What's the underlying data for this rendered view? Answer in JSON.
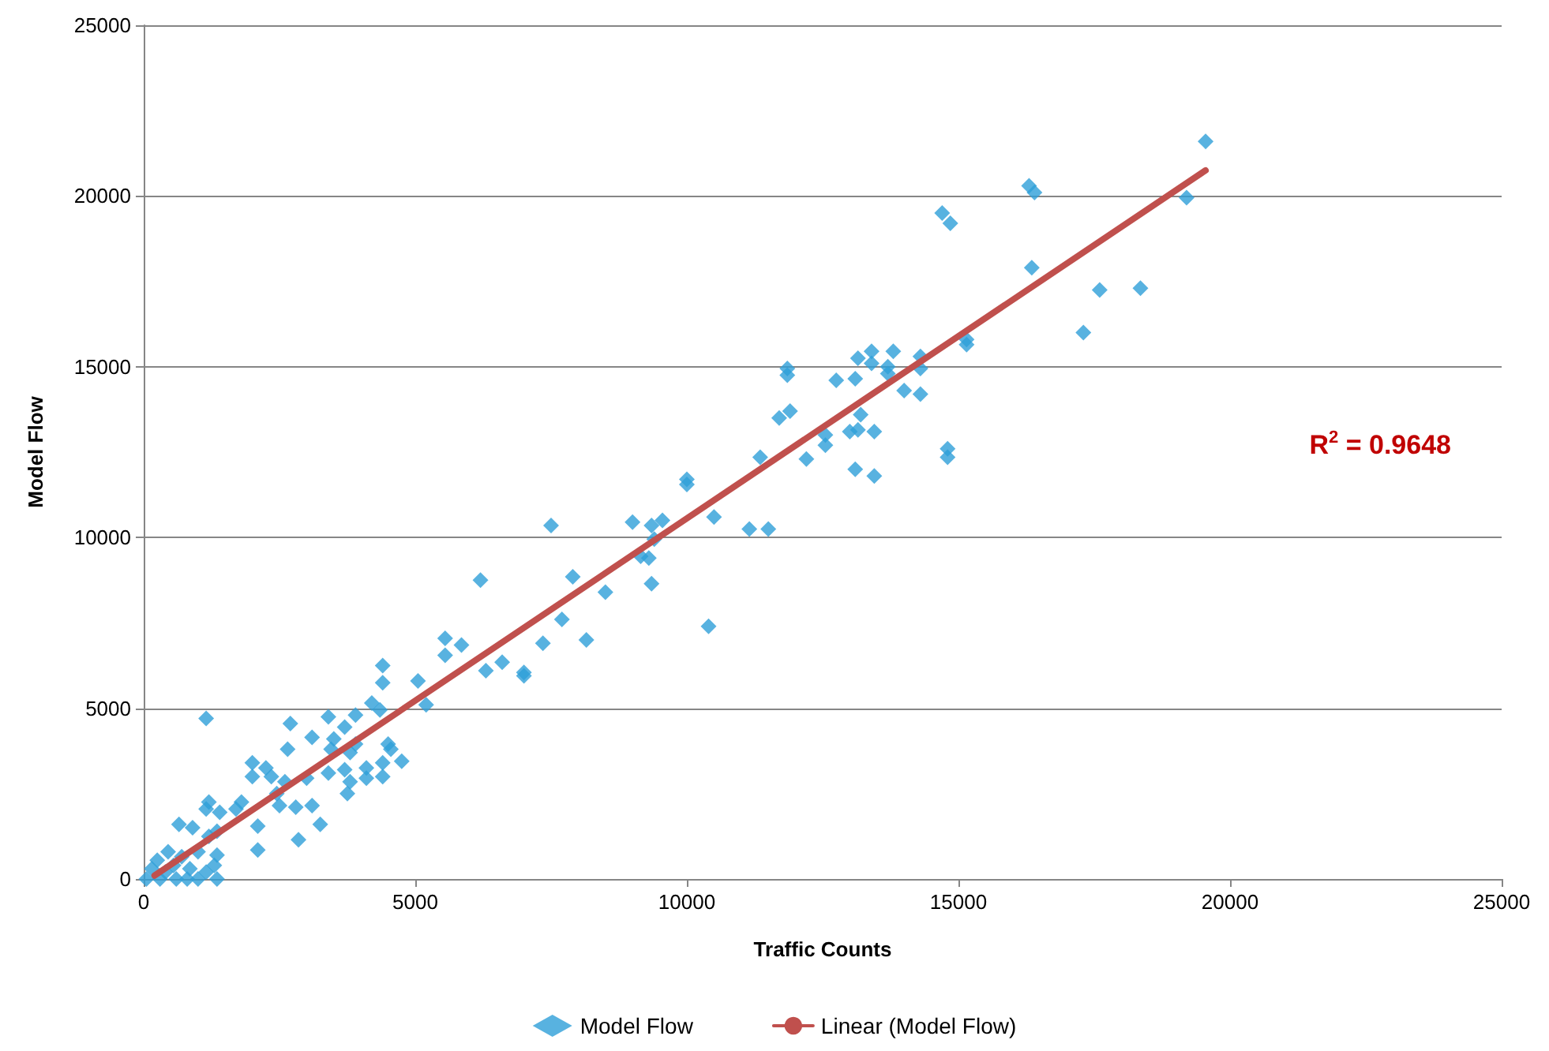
{
  "chart_data": {
    "type": "scatter",
    "xlabel": "Traffic Counts",
    "ylabel": "Model Flow",
    "xlim": [
      0,
      25000
    ],
    "ylim": [
      0,
      25000
    ],
    "xticks": [
      0,
      5000,
      10000,
      15000,
      20000,
      25000
    ],
    "yticks": [
      0,
      5000,
      10000,
      15000,
      20000,
      25000
    ],
    "grid": "y",
    "legend": "bottom",
    "annotations": [
      "R$^{2}$ = 0.9648"
    ],
    "series": [
      {
        "name": "Model Flow",
        "marker": "diamond",
        "color": "#2e9fd8",
        "x": [
          19550,
          19200,
          16300,
          16400,
          14700,
          14850,
          16350,
          17600,
          18350,
          17300,
          15150,
          15150,
          14300,
          14300,
          14300,
          14800,
          14800,
          13800,
          13700,
          13700,
          14000,
          13400,
          13400,
          13150,
          13100,
          12750,
          11850,
          11850,
          11900,
          11700,
          13200,
          13150,
          13000,
          13450,
          12550,
          12550,
          12200,
          11350,
          13100,
          13450,
          10000,
          10000,
          10500,
          11150,
          11500,
          9550,
          9350,
          9000,
          9400,
          9150,
          9300,
          9350,
          7500,
          7900,
          8500,
          7700,
          8150,
          7350,
          10400,
          6200,
          6600,
          7000,
          7000,
          6300,
          5850,
          5550,
          5550,
          4400,
          4400,
          5050,
          5200,
          4200,
          4350,
          1150,
          2700,
          3400,
          3900,
          3700,
          3100,
          3500,
          2650,
          3450,
          3800,
          3900,
          4500,
          4550,
          4750,
          4400,
          4100,
          3700,
          3400,
          4100,
          4400,
          3800,
          3750,
          2000,
          2250,
          2000,
          2350,
          2600,
          3000,
          3100,
          2800,
          2500,
          2450,
          3250,
          2850,
          2100,
          2100,
          1700,
          1800,
          1200,
          1150,
          650,
          900,
          1400,
          1350,
          1200,
          1350,
          1000,
          700,
          450,
          250,
          150,
          400,
          600,
          800,
          1000,
          1350,
          1150,
          50,
          300,
          850,
          1300,
          550
        ],
        "values": [
          21600,
          19950,
          20300,
          20100,
          19500,
          19200,
          17900,
          17250,
          17300,
          16000,
          15800,
          15650,
          15300,
          14950,
          14200,
          12600,
          12350,
          15450,
          15000,
          14800,
          14300,
          15450,
          15100,
          15250,
          14650,
          14600,
          14950,
          14750,
          13700,
          13500,
          13600,
          13150,
          13100,
          13100,
          13000,
          12700,
          12300,
          12350,
          12000,
          11800,
          11700,
          11550,
          10600,
          10250,
          10250,
          10500,
          10350,
          10450,
          9950,
          9450,
          9400,
          8650,
          10350,
          8850,
          8400,
          7600,
          7000,
          6900,
          7400,
          8750,
          6350,
          5950,
          6050,
          6100,
          6850,
          7050,
          6550,
          6250,
          5750,
          5800,
          5100,
          5150,
          4950,
          4700,
          4550,
          4750,
          4800,
          4450,
          4150,
          4100,
          3800,
          3800,
          3700,
          3950,
          3950,
          3800,
          3450,
          3400,
          3250,
          3200,
          3100,
          2950,
          3000,
          2850,
          2500,
          3400,
          3250,
          3000,
          3000,
          2850,
          2950,
          2150,
          2100,
          2150,
          2500,
          1600,
          1150,
          850,
          1550,
          2050,
          2250,
          2250,
          2050,
          1600,
          1500,
          1950,
          1400,
          1250,
          700,
          800,
          650,
          800,
          550,
          300,
          200,
          0,
          0,
          0,
          0,
          200,
          0,
          0,
          300,
          400,
          400
        ]
      },
      {
        "name": "Linear (Model Flow)",
        "type": "line",
        "marker": "none",
        "line_style": "solid",
        "color": "#c0504d",
        "x": [
          200,
          19550
        ],
        "values": [
          100,
          20750
        ]
      }
    ]
  }
}
